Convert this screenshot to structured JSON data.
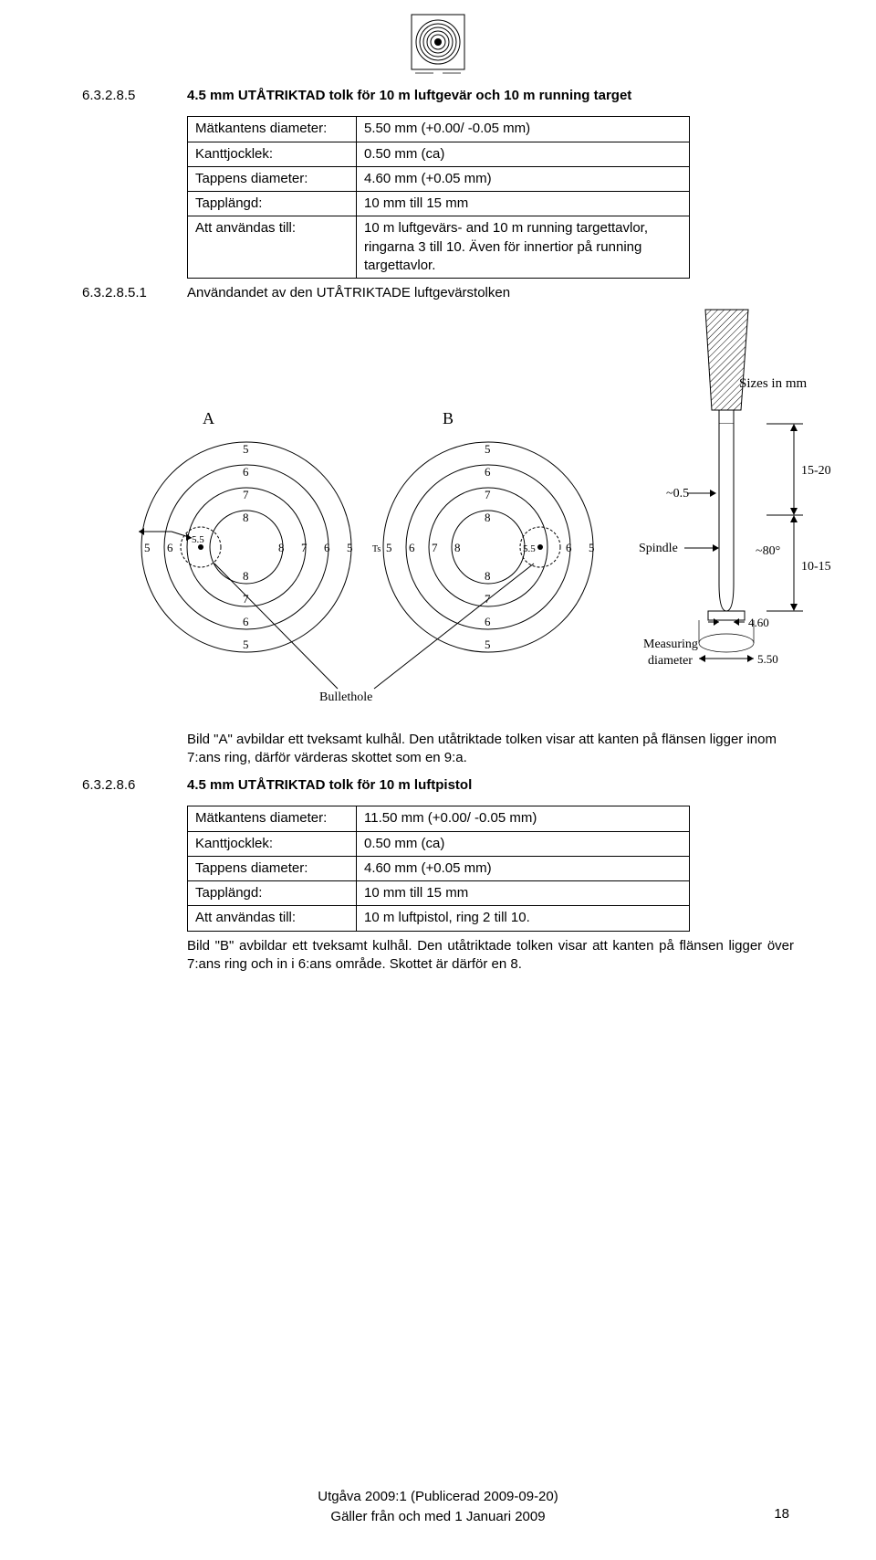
{
  "header_logo": {
    "rings": 7,
    "border_color": "#000000",
    "ring_color": "#000000"
  },
  "section1": {
    "num": "6.3.2.8.5",
    "title": "4.5 mm UTÅTRIKTAD tolk för 10 m luftgevär och 10 m running target",
    "table": {
      "rows": [
        {
          "label": "Mätkantens diameter:",
          "value": "5.50 mm (+0.00/ -0.05 mm)"
        },
        {
          "label": "Kanttjocklek:",
          "value": "0.50 mm (ca)"
        },
        {
          "label": "Tappens diameter:",
          "value": "4.60 mm (+0.05 mm)"
        },
        {
          "label": "Tapplängd:",
          "value": "10 mm till 15 mm"
        },
        {
          "label": "Att användas till:",
          "value": "10 m luftgevärs- and 10 m running targettavlor, ringarna 3 till 10. Även för innertior på running targettavlor."
        }
      ]
    }
  },
  "subsection1": {
    "num": "6.3.2.8.5.1",
    "title": "Användandet av den UTÅTRIKTADE luftgevärstolken"
  },
  "diagram": {
    "sizes_label": "Sizes in mm",
    "targets": {
      "A": {
        "label": "A",
        "rings": [
          "5",
          "6",
          "7",
          "8"
        ],
        "gauge_label": "5.5"
      },
      "B": {
        "label": "B",
        "rings": [
          "5",
          "6",
          "7",
          "8"
        ],
        "gauge_label": "5.5"
      },
      "row_labels_left": [
        "5",
        "6",
        "",
        "8",
        "7",
        "6",
        "5"
      ],
      "row_labels_right": [
        "5",
        "6",
        "7",
        "8",
        "",
        "6",
        "5"
      ],
      "bullethole_label": "Bullethole",
      "Ts_label": "Ts"
    },
    "spindle": {
      "top_arrow": "~0.5",
      "spindle_label": "Spindle",
      "angle_label": "~80°",
      "right_top": "15-20",
      "right_bottom": "10-15",
      "dia_small": "4.60",
      "measuring": "Measuring",
      "diameter_label": "diameter",
      "dia_large": "5.50"
    },
    "colors": {
      "stroke": "#000000",
      "fill_spindle": "#ffffff",
      "hatch": "#000000"
    }
  },
  "caption_A": "Bild \"A\" avbildar ett tveksamt kulhål. Den utåtriktade tolken visar att kanten på flänsen ligger inom 7:ans ring, därför värderas skottet som en 9:a.",
  "section2": {
    "num": "6.3.2.8.6",
    "title": "4.5 mm UTÅTRIKTAD tolk för 10 m luftpistol",
    "table": {
      "rows": [
        {
          "label": "Mätkantens diameter:",
          "value": "11.50 mm (+0.00/ -0.05 mm)"
        },
        {
          "label": "Kanttjocklek:",
          "value": "0.50 mm (ca)"
        },
        {
          "label": "Tappens diameter:",
          "value": "4.60 mm (+0.05 mm)"
        },
        {
          "label": "Tapplängd:",
          "value": "10 mm till 15 mm"
        },
        {
          "label": "Att användas till:",
          "value": "10 m luftpistol, ring 2 till 10."
        }
      ]
    }
  },
  "caption_B": "Bild \"B\" avbildar ett tveksamt kulhål. Den utåtriktade tolken visar att kanten på flänsen ligger över 7:ans ring och in i 6:ans område. Skottet är därför en 8.",
  "footer": {
    "line1": "Utgåva 2009:1 (Publicerad 2009-09-20)",
    "line2": "Gäller från och med 1 Januari 2009",
    "page": "18"
  }
}
